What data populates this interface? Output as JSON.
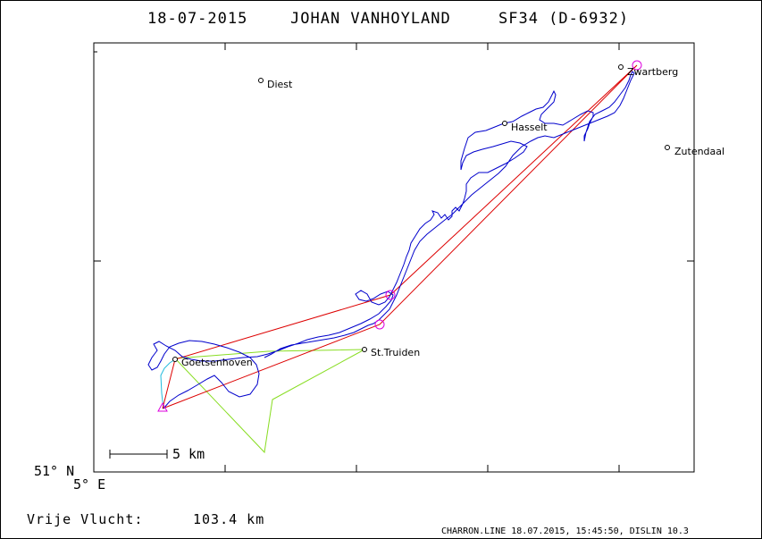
{
  "header": {
    "date": "18-07-2015",
    "pilot": "JOHAN VANHOYLAND",
    "glider": "SF34 (D-6932)"
  },
  "places": [
    {
      "name": "Diest",
      "label": "Diest"
    },
    {
      "name": "Zwartberg",
      "label": "Zwartberg"
    },
    {
      "name": "Hasselt",
      "label": "Hasselt"
    },
    {
      "name": "Zutendaal",
      "label": "Zutendaal"
    },
    {
      "name": "Goetsenhoven",
      "label": "Goetsenhoven"
    },
    {
      "name": "St.Truiden",
      "label": "St.Truiden"
    }
  ],
  "scale_bar": {
    "label": "5 km"
  },
  "axes": {
    "lat_label": "51° N",
    "lon_label": "5° E"
  },
  "summary": {
    "label": "Vrije Vlucht:",
    "distance": "103.4 km"
  },
  "credit": "CHARRON.LINE 18.07.2015, 15:45:50, DISLIN 10.3",
  "colors": {
    "frame": "#000000",
    "track": "#0000cc",
    "task": "#dd0000",
    "declared": "#88dd22",
    "launch": "#22bbdd",
    "turnpoint": "#dd00dd"
  }
}
